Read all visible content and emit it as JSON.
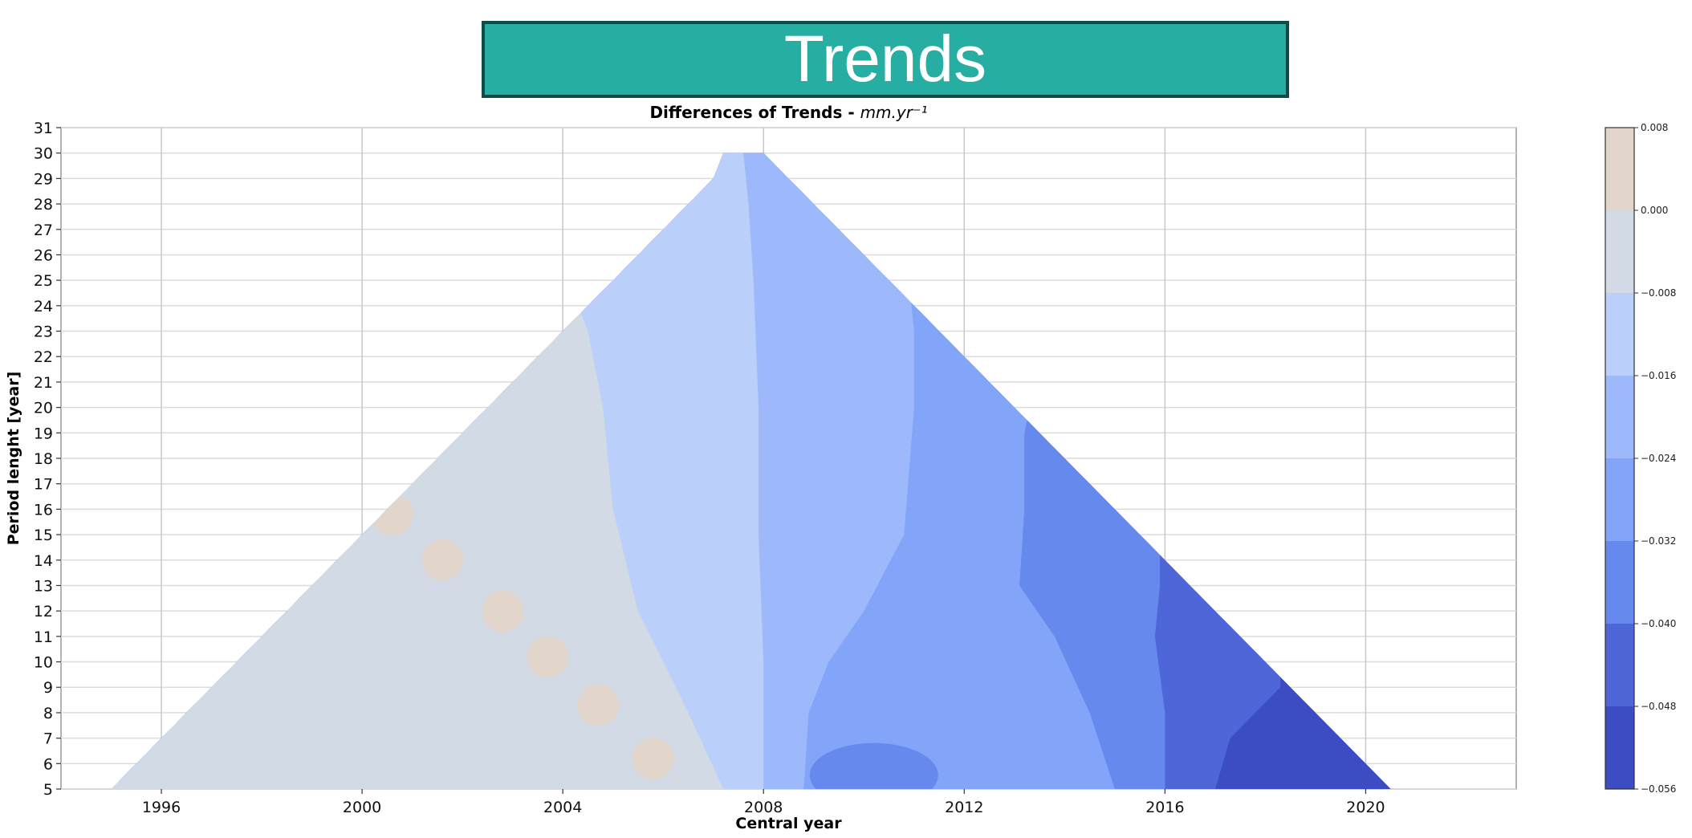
{
  "banner": {
    "title": "Trends"
  },
  "chart_data": {
    "type": "heatmap",
    "title": "Differences of Trends - ",
    "title_unit": "mm.yr⁻¹",
    "xlabel": "Central year",
    "ylabel": "Period lenght [year]",
    "xlim": [
      1994,
      2023
    ],
    "ylim": [
      5,
      31
    ],
    "xticks": [
      "1996",
      "2000",
      "2004",
      "2008",
      "2012",
      "2016",
      "2020"
    ],
    "yticks": [
      "5",
      "6",
      "7",
      "8",
      "9",
      "10",
      "11",
      "12",
      "13",
      "14",
      "15",
      "16",
      "17",
      "18",
      "19",
      "20",
      "21",
      "22",
      "23",
      "24",
      "25",
      "26",
      "27",
      "28",
      "29",
      "30",
      "31"
    ],
    "grid": true,
    "colorbar": {
      "levels": [
        0.008,
        0.0,
        -0.008,
        -0.016,
        -0.024,
        -0.032,
        -0.04,
        -0.048,
        -0.056
      ],
      "labels": [
        "0.008",
        "0.000",
        "−0.008",
        "−0.016",
        "−0.024",
        "−0.032",
        "−0.040",
        "−0.048",
        "−0.056"
      ],
      "colors": [
        "#e2d6cc",
        "#d1dae5",
        "#bacffa",
        "#9db9fc",
        "#82a5fa",
        "#6589ec",
        "#4f66d8",
        "#3c4cc2"
      ]
    },
    "domain": {
      "left_edge": [
        [
          1995.0,
          5
        ],
        [
          1996.0,
          7
        ],
        [
          1997.0,
          9
        ],
        [
          1998.0,
          11
        ],
        [
          1999.0,
          13
        ],
        [
          2000.0,
          15
        ],
        [
          2001.0,
          17
        ],
        [
          2002.0,
          19
        ],
        [
          2003.0,
          21
        ],
        [
          2004.0,
          23
        ],
        [
          2005.0,
          25
        ],
        [
          2006.0,
          27
        ],
        [
          2007.0,
          29
        ],
        [
          2007.2,
          30
        ]
      ],
      "top": [
        [
          2007.2,
          30
        ],
        [
          2008.0,
          30
        ]
      ],
      "right_edge": [
        [
          2008.0,
          30
        ],
        [
          2009.0,
          28
        ],
        [
          2010.0,
          26
        ],
        [
          2011.0,
          24
        ],
        [
          2012.0,
          22
        ],
        [
          2013.0,
          20
        ],
        [
          2014.0,
          18
        ],
        [
          2015.0,
          16
        ],
        [
          2016.0,
          14
        ],
        [
          2017.0,
          12
        ],
        [
          2018.0,
          10
        ],
        [
          2019.0,
          8
        ],
        [
          2020.5,
          5
        ]
      ]
    },
    "bands": [
      {
        "color_index": 1,
        "range": "0.000 to -0.008",
        "right_boundary": [
          [
            2007.2,
            5
          ],
          [
            2006.5,
            8
          ],
          [
            2005.5,
            12
          ],
          [
            2005.0,
            16
          ],
          [
            2004.8,
            20
          ],
          [
            2004.5,
            23
          ],
          [
            2004.3,
            24
          ]
        ]
      },
      {
        "color_index": 2,
        "range": "-0.008 to -0.016",
        "right_boundary": [
          [
            2008.0,
            5
          ],
          [
            2008.0,
            10
          ],
          [
            2007.9,
            15
          ],
          [
            2007.9,
            20
          ],
          [
            2007.8,
            25
          ],
          [
            2007.7,
            28
          ],
          [
            2007.6,
            30
          ]
        ]
      },
      {
        "color_index": 3,
        "range": "-0.016 to -0.024",
        "right_boundary": [
          [
            2008.8,
            5
          ],
          [
            2008.9,
            8
          ],
          [
            2009.3,
            10
          ],
          [
            2010.0,
            12
          ],
          [
            2010.8,
            15
          ],
          [
            2011.0,
            20
          ],
          [
            2011.0,
            23
          ],
          [
            2010.9,
            25
          ]
        ]
      },
      {
        "color_index": 4,
        "range": "-0.024 to -0.032",
        "right_boundary": [
          [
            2015.0,
            5
          ],
          [
            2014.5,
            8
          ],
          [
            2013.8,
            11
          ],
          [
            2013.1,
            13
          ],
          [
            2013.2,
            16
          ],
          [
            2013.2,
            19
          ],
          [
            2013.3,
            20
          ]
        ]
      },
      {
        "color_index": 5,
        "range": "-0.032 to -0.040",
        "right_boundary": [
          [
            2016.0,
            5
          ],
          [
            2016.0,
            8
          ],
          [
            2015.8,
            11
          ],
          [
            2015.9,
            13
          ]
        ]
      },
      {
        "color_index": 6,
        "range": "-0.040 to -0.048",
        "right_boundary": [
          [
            2017.0,
            5
          ],
          [
            2017.3,
            7
          ],
          [
            2017.8,
            8
          ],
          [
            2018.3,
            9
          ]
        ]
      },
      {
        "color_index": 7,
        "range": "-0.048 to -0.056",
        "right_boundary": [
          [
            2020.5,
            5
          ],
          [
            2019.6,
            7
          ],
          [
            2018.6,
            9
          ]
        ]
      }
    ],
    "positive_patches": [
      {
        "color_index": 0,
        "range": "0.008 to 0.000",
        "center": [
          2000.6,
          15.8
        ]
      },
      {
        "color_index": 0,
        "range": "0.008 to 0.000",
        "center": [
          2001.6,
          14.0
        ]
      },
      {
        "color_index": 0,
        "range": "0.008 to 0.000",
        "center": [
          2002.8,
          12.0
        ]
      },
      {
        "color_index": 0,
        "range": "0.008 to 0.000",
        "center": [
          2003.7,
          10.2
        ]
      },
      {
        "color_index": 0,
        "range": "0.008 to 0.000",
        "center": [
          2004.7,
          8.3
        ]
      },
      {
        "color_index": 0,
        "range": "0.008 to 0.000",
        "center": [
          2005.8,
          6.2
        ]
      }
    ],
    "dark_patch": {
      "color_index": 5,
      "range": "-0.032 to -0.040",
      "center": [
        2010.2,
        5.8
      ]
    }
  }
}
